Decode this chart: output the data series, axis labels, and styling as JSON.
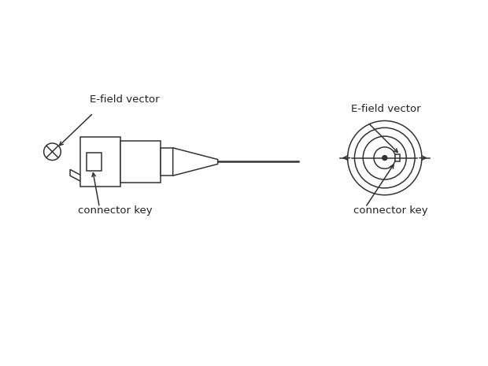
{
  "bg_color": "#ffffff",
  "line_color": "#333333",
  "label_color": "#222222",
  "font_family": "DejaVu Sans",
  "font_size": 9.5,
  "left_diagram": {
    "label_efield": "E-field vector",
    "label_connector": "connector key"
  },
  "right_diagram": {
    "label_efield": "E-field vector",
    "label_connector": "connector key"
  }
}
